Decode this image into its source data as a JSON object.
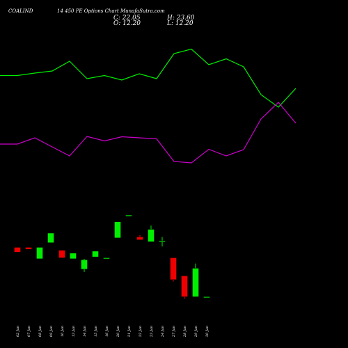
{
  "header": {
    "symbol": "COALIND",
    "subtitle": "14 450 PE Options  Chart MunafaSutra.com"
  },
  "ohlc": {
    "close": "C: 22.05",
    "open": "O: 12.20",
    "high": "H: 23.60",
    "low": "L: 12.20"
  },
  "colors": {
    "up": "#00ee00",
    "down": "#ee0000",
    "line_upper": "#00ee00",
    "line_lower": "#cc00cc",
    "background": "#000000"
  },
  "chart_data": {
    "type": "candlestick",
    "title": "",
    "categories": [
      "02 Jan",
      "07 Jan",
      "08 Jan",
      "09 Jan",
      "10 Jan",
      "13 Jan",
      "14 Jan",
      "15 Jan",
      "16 Jan",
      "20 Jan",
      "21 Jan",
      "22 Jan",
      "23 Jan",
      "24 Jan",
      "27 Jan",
      "28 Jan",
      "29 Jan",
      "30 Jan"
    ],
    "price_range": [
      10,
      21
    ],
    "candles": [
      {
        "o": 14.0,
        "h": 14.0,
        "l": 13.5,
        "c": 13.5
      },
      {
        "o": 14.0,
        "h": 14.0,
        "l": 13.8,
        "c": 13.8
      },
      {
        "o": 12.8,
        "h": 14.0,
        "l": 12.8,
        "c": 14.0
      },
      {
        "o": 14.5,
        "h": 15.5,
        "l": 14.5,
        "c": 15.5
      },
      {
        "o": 13.7,
        "h": 13.7,
        "l": 12.9,
        "c": 12.9
      },
      {
        "o": 12.8,
        "h": 13.4,
        "l": 12.8,
        "c": 13.4
      },
      {
        "o": 11.7,
        "h": 12.8,
        "l": 11.4,
        "c": 12.7
      },
      {
        "o": 13.0,
        "h": 13.6,
        "l": 13.0,
        "c": 13.6
      },
      {
        "o": 12.9,
        "h": 12.9,
        "l": 12.9,
        "c": 12.9
      },
      {
        "o": 15.0,
        "h": 16.7,
        "l": 15.0,
        "c": 16.7
      },
      {
        "o": 17.3,
        "h": 17.4,
        "l": 17.3,
        "c": 17.4
      },
      {
        "o": 15.1,
        "h": 15.3,
        "l": 14.8,
        "c": 14.8
      },
      {
        "o": 14.6,
        "h": 16.3,
        "l": 14.6,
        "c": 15.9
      },
      {
        "o": 14.7,
        "h": 15.1,
        "l": 14.1,
        "c": 14.7
      },
      {
        "o": 12.9,
        "h": 12.9,
        "l": 10.4,
        "c": 10.6
      },
      {
        "o": 11.0,
        "h": 11.0,
        "l": 8.6,
        "c": 8.8
      },
      {
        "o": 8.8,
        "h": 12.3,
        "l": 8.8,
        "c": 11.8
      },
      {
        "o": 8.8,
        "h": 8.8,
        "l": 8.8,
        "c": 8.8
      }
    ],
    "series": [
      {
        "values": [
          108.5,
          108.5,
          105,
          102,
          88,
          113,
          108.5,
          115,
          106,
          113,
          77,
          70.5,
          93,
          84.5,
          96,
          136,
          154,
          127
        ]
      },
      {
        "values": [
          207,
          207,
          198,
          211,
          224,
          196,
          202.5,
          196.5,
          198,
          199.5,
          232,
          234,
          214.5,
          224,
          215,
          171,
          147,
          177
        ]
      }
    ]
  }
}
